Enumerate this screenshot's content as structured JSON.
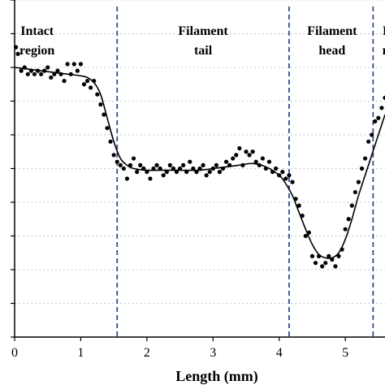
{
  "chart_data": {
    "type": "scatter",
    "title": "",
    "xlabel": "Length (mm)",
    "ylabel": "",
    "xlim": [
      0,
      5.6
    ],
    "ylim": [
      0,
      10
    ],
    "x_ticks": [
      "0",
      "1",
      "2",
      "3",
      "4",
      "5"
    ],
    "grid": "horizontal-dotted",
    "region_boundaries_mm": [
      1.55,
      4.15,
      5.42
    ],
    "regions": [
      {
        "lines": [
          "Intact",
          "region"
        ],
        "center_mm": 0.34
      },
      {
        "lines": [
          "Filament",
          "tail"
        ],
        "center_mm": 2.85
      },
      {
        "lines": [
          "Filament",
          "head"
        ],
        "center_mm": 4.8
      },
      {
        "lines": [
          "I",
          "r"
        ],
        "center_mm": 5.6
      }
    ],
    "series": [
      {
        "kind": "points",
        "x": [
          0.02,
          0.05,
          0.1,
          0.15,
          0.2,
          0.25,
          0.3,
          0.35,
          0.4,
          0.45,
          0.5,
          0.55,
          0.6,
          0.65,
          0.7,
          0.75,
          0.8,
          0.85,
          0.9,
          0.95,
          1.0,
          1.05,
          1.1,
          1.15,
          1.2,
          1.25,
          1.3,
          1.35,
          1.4,
          1.45,
          1.5,
          1.55,
          1.6,
          1.65,
          1.7,
          1.75,
          1.8,
          1.85,
          1.9,
          1.95,
          2.0,
          2.05,
          2.1,
          2.15,
          2.2,
          2.25,
          2.3,
          2.35,
          2.4,
          2.45,
          2.5,
          2.55,
          2.6,
          2.65,
          2.7,
          2.75,
          2.8,
          2.85,
          2.9,
          2.95,
          3.0,
          3.05,
          3.1,
          3.15,
          3.2,
          3.25,
          3.3,
          3.35,
          3.4,
          3.45,
          3.5,
          3.55,
          3.6,
          3.65,
          3.7,
          3.75,
          3.8,
          3.85,
          3.9,
          3.95,
          4.0,
          4.05,
          4.1,
          4.15,
          4.2,
          4.25,
          4.3,
          4.35,
          4.4,
          4.45,
          4.5,
          4.55,
          4.6,
          4.65,
          4.7,
          4.75,
          4.8,
          4.85,
          4.9,
          4.95,
          5.0,
          5.05,
          5.1,
          5.15,
          5.2,
          5.25,
          5.3,
          5.35,
          5.4,
          5.45,
          5.5,
          5.55,
          5.6
        ],
        "y": [
          8.6,
          8.4,
          7.9,
          8.0,
          7.8,
          7.9,
          7.8,
          7.9,
          7.8,
          7.9,
          8.0,
          7.7,
          7.8,
          7.9,
          7.8,
          7.6,
          8.1,
          7.8,
          8.1,
          7.9,
          8.1,
          7.5,
          7.6,
          7.4,
          7.6,
          7.2,
          6.9,
          6.6,
          6.2,
          5.8,
          5.4,
          5.2,
          5.1,
          5.0,
          4.7,
          5.1,
          5.3,
          4.9,
          5.1,
          5.0,
          4.9,
          4.7,
          5.0,
          5.1,
          5.0,
          4.8,
          4.9,
          5.1,
          5.0,
          4.9,
          5.0,
          5.1,
          4.9,
          5.2,
          5.0,
          4.9,
          5.0,
          5.1,
          4.8,
          4.9,
          5.0,
          5.1,
          4.9,
          5.0,
          5.2,
          5.1,
          5.3,
          5.4,
          5.6,
          5.1,
          5.5,
          5.4,
          5.5,
          5.2,
          5.1,
          5.3,
          5.0,
          5.2,
          4.9,
          5.0,
          4.8,
          4.9,
          4.7,
          4.8,
          4.6,
          4.1,
          3.9,
          3.6,
          3.0,
          3.1,
          2.4,
          2.2,
          2.4,
          2.1,
          2.2,
          2.4,
          2.3,
          2.1,
          2.4,
          2.6,
          3.2,
          3.5,
          3.9,
          4.3,
          4.6,
          5.0,
          5.3,
          5.8,
          6.0,
          6.4,
          6.5,
          6.8,
          7.1
        ]
      },
      {
        "kind": "fit-line",
        "x": [
          0,
          0.2,
          0.4,
          0.6,
          0.8,
          1.0,
          1.1,
          1.2,
          1.3,
          1.4,
          1.5,
          1.6,
          1.7,
          1.8,
          2.0,
          2.2,
          2.5,
          2.8,
          3.0,
          3.2,
          3.4,
          3.6,
          3.8,
          4.0,
          4.1,
          4.2,
          4.3,
          4.4,
          4.5,
          4.6,
          4.7,
          4.8,
          4.9,
          5.0,
          5.1,
          5.2,
          5.3,
          5.4,
          5.5,
          5.6
        ],
        "y": [
          8.0,
          7.95,
          7.9,
          7.85,
          7.8,
          7.75,
          7.7,
          7.55,
          7.2,
          6.5,
          5.8,
          5.3,
          5.1,
          5.0,
          4.95,
          4.95,
          4.95,
          4.95,
          5.0,
          5.05,
          5.1,
          5.15,
          5.05,
          4.8,
          4.55,
          4.2,
          3.7,
          3.2,
          2.75,
          2.45,
          2.35,
          2.35,
          2.5,
          2.9,
          3.5,
          4.2,
          4.8,
          5.4,
          6.0,
          6.6
        ]
      }
    ],
    "colors": {
      "points": "#000000",
      "line": "#000000",
      "boundary": "#2f4f8f",
      "grid": "#c8c8c8",
      "axis": "#000000"
    }
  }
}
